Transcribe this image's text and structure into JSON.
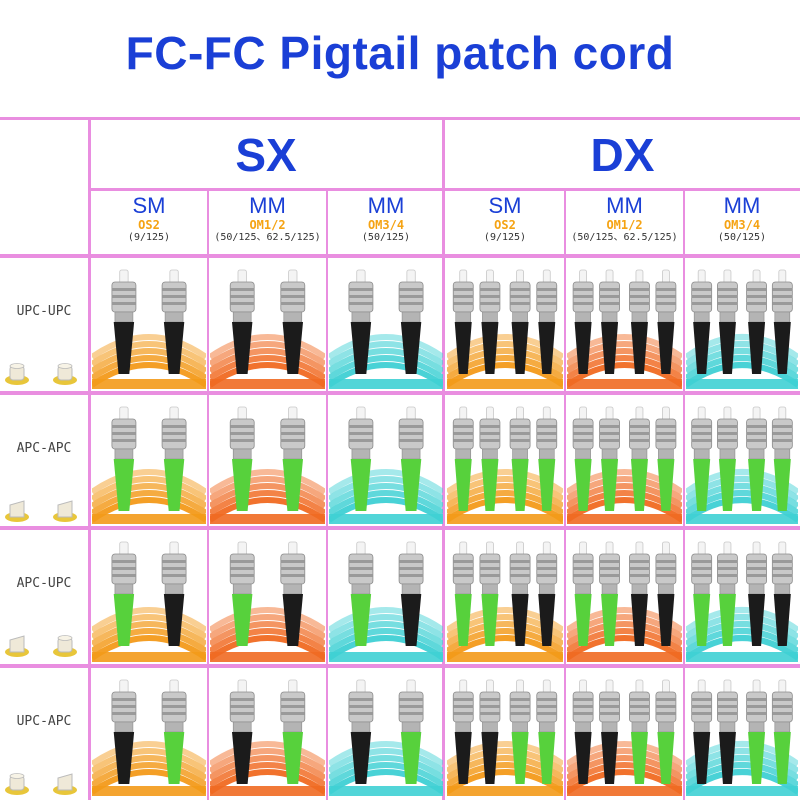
{
  "title": "FC-FC Pigtail patch cord",
  "groups": [
    {
      "label": "SX"
    },
    {
      "label": "DX"
    }
  ],
  "columns": [
    {
      "type": "SM",
      "grade": "OS2",
      "spec": "(9/125)",
      "cable": "#f39a1a",
      "count": 2
    },
    {
      "type": "MM",
      "grade": "OM1/2",
      "spec": "(50/125、62.5/125)",
      "cable": "#f06a22",
      "count": 2
    },
    {
      "type": "MM",
      "grade": "OM3/4",
      "spec": "(50/125)",
      "cable": "#3fd0d4",
      "count": 2
    },
    {
      "type": "SM",
      "grade": "OS2",
      "spec": "(9/125)",
      "cable": "#f39a1a",
      "count": 4
    },
    {
      "type": "MM",
      "grade": "OM1/2",
      "spec": "(50/125、62.5/125)",
      "cable": "#f06a22",
      "count": 4
    },
    {
      "type": "MM",
      "grade": "OM3/4",
      "spec": "(50/125)",
      "cable": "#3fd0d4",
      "count": 4
    }
  ],
  "rows": [
    {
      "label": "UPC-UPC",
      "ends": [
        "upc",
        "upc"
      ]
    },
    {
      "label": "APC-APC",
      "ends": [
        "apc",
        "apc"
      ]
    },
    {
      "label": "APC-UPC",
      "ends": [
        "apc",
        "upc"
      ]
    },
    {
      "label": "UPC-APC",
      "ends": [
        "upc",
        "apc"
      ]
    }
  ],
  "colors": {
    "title": "#1a3fd6",
    "grid": "#e98ee0",
    "grade": "#f5a313",
    "upc_boot": "#1b1b1b",
    "apc_boot": "#57d13c"
  }
}
